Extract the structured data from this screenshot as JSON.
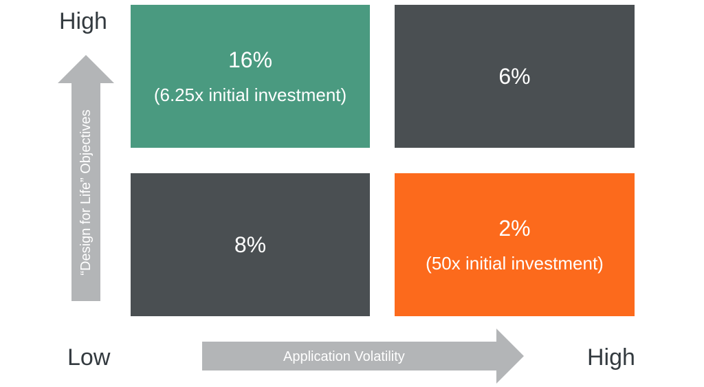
{
  "axes": {
    "y_high_label": "High",
    "x_low_label": "Low",
    "x_high_label": "High",
    "y_axis_title": "“Design for Life” Objectives",
    "x_axis_title": "Application Volatility"
  },
  "quadrants": {
    "top_left": {
      "value": "16%",
      "note": "(6.25x initial investment)",
      "color": "#4a9a80"
    },
    "top_right": {
      "value": "6%",
      "color": "#4a4f52"
    },
    "bottom_left": {
      "value": "8%",
      "color": "#4a4f52"
    },
    "bottom_right": {
      "value": "2%",
      "note": "(50x initial investment)",
      "color": "#fc6a1c"
    }
  },
  "colors": {
    "arrow": "#b3b5b7",
    "label_text": "#333a3f"
  }
}
